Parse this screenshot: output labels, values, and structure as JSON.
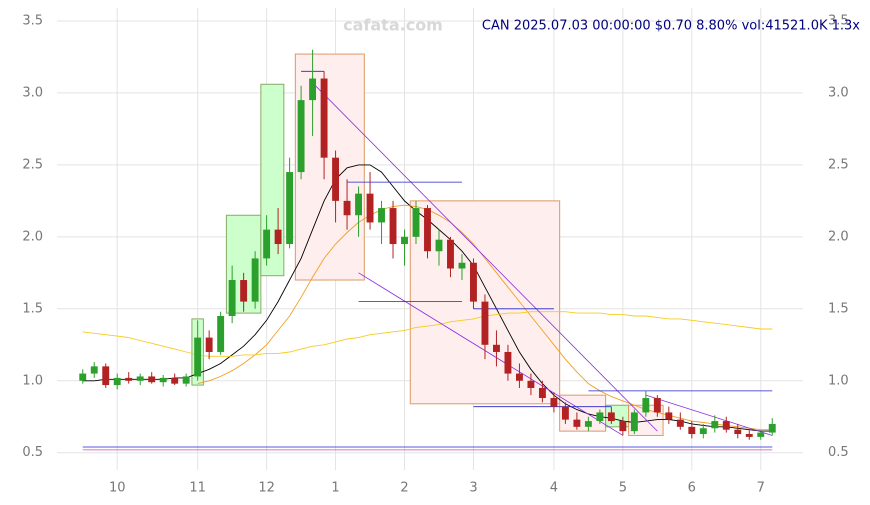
{
  "chart_data": {
    "type": "candlestick",
    "title": "CAN 2025.07.03 00:00:00 $0.70 8.80% vol:41521.0K 1.3x",
    "watermark": "cafata.com",
    "categories": [
      null,
      null,
      null,
      "10",
      null,
      null,
      null,
      null,
      null,
      null,
      "11",
      null,
      null,
      null,
      null,
      null,
      "12",
      null,
      null,
      null,
      null,
      null,
      "1",
      null,
      null,
      null,
      null,
      null,
      "2",
      null,
      null,
      null,
      null,
      null,
      "3",
      null,
      null,
      null,
      null,
      null,
      null,
      "4",
      null,
      null,
      null,
      null,
      null,
      "5",
      null,
      null,
      null,
      null,
      null,
      "6",
      null,
      null,
      null,
      null,
      null,
      "7",
      null
    ],
    "open": [
      1.0,
      1.05,
      1.1,
      0.97,
      1.02,
      1.0,
      1.03,
      0.99,
      1.02,
      0.98,
      1.03,
      1.3,
      1.2,
      1.45,
      1.7,
      1.55,
      1.85,
      2.05,
      1.95,
      2.45,
      2.95,
      3.1,
      2.55,
      2.25,
      2.15,
      2.3,
      2.1,
      2.2,
      1.95,
      2.0,
      2.2,
      1.9,
      1.98,
      1.78,
      1.82,
      1.55,
      1.25,
      1.2,
      1.05,
      1.0,
      0.95,
      0.88,
      0.82,
      0.73,
      0.68,
      0.72,
      0.78,
      0.72,
      0.65,
      0.78,
      0.88,
      0.78,
      0.73,
      0.68,
      0.63,
      0.67,
      0.72,
      0.66,
      0.63,
      0.61,
      0.64
    ],
    "high": [
      1.08,
      1.13,
      1.12,
      1.05,
      1.06,
      1.05,
      1.06,
      1.04,
      1.05,
      1.05,
      1.42,
      1.35,
      1.48,
      1.8,
      1.75,
      1.9,
      2.15,
      2.2,
      2.55,
      3.05,
      3.3,
      3.15,
      2.6,
      2.4,
      2.35,
      2.45,
      2.25,
      2.25,
      2.05,
      2.25,
      2.22,
      2.05,
      2.0,
      1.88,
      1.85,
      1.6,
      1.35,
      1.25,
      1.12,
      1.05,
      1.0,
      0.92,
      0.85,
      0.78,
      0.75,
      0.8,
      0.82,
      0.75,
      0.8,
      0.93,
      0.9,
      0.82,
      0.78,
      0.72,
      0.7,
      0.76,
      0.75,
      0.7,
      0.66,
      0.65,
      0.74
    ],
    "low": [
      0.98,
      1.02,
      0.95,
      0.94,
      0.98,
      0.97,
      0.98,
      0.96,
      0.97,
      0.96,
      1.0,
      1.15,
      1.18,
      1.4,
      1.48,
      1.5,
      1.8,
      1.88,
      1.92,
      2.4,
      2.7,
      2.4,
      2.1,
      2.05,
      2.0,
      2.05,
      1.95,
      1.85,
      1.8,
      1.95,
      1.85,
      1.8,
      1.72,
      1.7,
      1.5,
      1.15,
      1.1,
      1.0,
      0.95,
      0.9,
      0.85,
      0.78,
      0.7,
      0.66,
      0.65,
      0.7,
      0.7,
      0.62,
      0.63,
      0.75,
      0.75,
      0.7,
      0.66,
      0.6,
      0.6,
      0.64,
      0.64,
      0.6,
      0.59,
      0.59,
      0.62
    ],
    "close": [
      1.05,
      1.1,
      0.97,
      1.02,
      1.0,
      1.03,
      0.99,
      1.02,
      0.98,
      1.03,
      1.3,
      1.2,
      1.45,
      1.7,
      1.55,
      1.85,
      2.05,
      1.95,
      2.45,
      2.95,
      3.1,
      2.55,
      2.25,
      2.15,
      2.3,
      2.1,
      2.2,
      1.95,
      2.0,
      2.2,
      1.9,
      1.98,
      1.78,
      1.82,
      1.55,
      1.25,
      1.2,
      1.05,
      1.0,
      0.95,
      0.88,
      0.82,
      0.73,
      0.68,
      0.72,
      0.78,
      0.72,
      0.65,
      0.78,
      0.88,
      0.78,
      0.73,
      0.68,
      0.63,
      0.67,
      0.72,
      0.66,
      0.63,
      0.61,
      0.64,
      0.7
    ],
    "up_color": "#2ca02c",
    "down_color": "#b22222",
    "series": [
      {
        "color": "#000000",
        "values": [
          1.0,
          1.0,
          1.01,
          1.01,
          1.01,
          1.01,
          1.01,
          1.01,
          1.02,
          1.02,
          1.05,
          1.08,
          1.12,
          1.18,
          1.24,
          1.32,
          1.42,
          1.55,
          1.7,
          1.85,
          2.05,
          2.25,
          2.4,
          2.48,
          2.5,
          2.5,
          2.45,
          2.35,
          2.25,
          2.18,
          2.12,
          2.05,
          1.98,
          1.9,
          1.8,
          1.65,
          1.5,
          1.35,
          1.2,
          1.08,
          0.98,
          0.9,
          0.84,
          0.8,
          0.77,
          0.75,
          0.74,
          0.72,
          0.71,
          0.72,
          0.73,
          0.73,
          0.72,
          0.7,
          0.69,
          0.68,
          0.68,
          0.67,
          0.66,
          0.65,
          0.65
        ]
      },
      {
        "color": "#f0a020",
        "values": [
          null,
          null,
          null,
          null,
          null,
          null,
          null,
          null,
          null,
          null,
          0.98,
          1.0,
          1.03,
          1.07,
          1.12,
          1.18,
          1.25,
          1.35,
          1.45,
          1.58,
          1.72,
          1.85,
          1.95,
          2.03,
          2.1,
          2.15,
          2.19,
          2.21,
          2.22,
          2.21,
          2.19,
          2.15,
          2.1,
          2.03,
          1.95,
          1.85,
          1.75,
          1.65,
          1.55,
          1.45,
          1.35,
          1.25,
          1.15,
          1.06,
          0.98,
          0.93,
          0.89,
          0.86,
          0.83,
          0.8,
          0.78,
          0.76,
          0.74,
          0.72,
          0.71,
          0.7,
          0.69,
          0.68,
          0.67,
          0.66,
          0.66
        ]
      },
      {
        "color": "#f5cc20",
        "values": [
          1.34,
          1.33,
          1.32,
          1.31,
          1.3,
          1.28,
          1.26,
          1.24,
          1.22,
          1.2,
          1.18,
          1.17,
          1.17,
          1.17,
          1.18,
          1.18,
          1.19,
          1.19,
          1.2,
          1.22,
          1.24,
          1.25,
          1.27,
          1.29,
          1.3,
          1.32,
          1.33,
          1.34,
          1.35,
          1.37,
          1.38,
          1.39,
          1.41,
          1.42,
          1.43,
          1.45,
          1.46,
          1.47,
          1.47,
          1.48,
          1.48,
          1.48,
          1.48,
          1.47,
          1.47,
          1.47,
          1.46,
          1.46,
          1.45,
          1.45,
          1.44,
          1.43,
          1.43,
          1.42,
          1.41,
          1.4,
          1.39,
          1.38,
          1.37,
          1.36,
          1.36
        ]
      }
    ],
    "boxes": [
      {
        "start": 10,
        "end": 10,
        "low": 0.97,
        "high": 1.43,
        "color": "#ccffcc"
      },
      {
        "start": 13,
        "end": 15,
        "low": 1.47,
        "high": 2.15,
        "color": "#ccffcc"
      },
      {
        "start": 16,
        "end": 17,
        "low": 1.73,
        "high": 3.06,
        "color": "#ccffcc"
      },
      {
        "start": 19,
        "end": 24,
        "low": 1.7,
        "high": 3.27,
        "color": "#ffeeee"
      },
      {
        "start": 29,
        "end": 41,
        "low": 0.84,
        "high": 2.25,
        "color": "#ffeeee"
      },
      {
        "start": 42,
        "end": 45,
        "low": 0.65,
        "high": 0.9,
        "color": "#ffeeee"
      },
      {
        "start": 46,
        "end": 47,
        "low": 0.68,
        "high": 0.83,
        "color": "#ccffcc"
      },
      {
        "start": 48,
        "end": 50,
        "low": 0.62,
        "high": 0.83,
        "color": "#ffeeee"
      }
    ],
    "trend_lines": [
      {
        "x1": 20,
        "y1": 3.07,
        "x2": 50,
        "y2": 0.65,
        "color": "#8a2be2"
      },
      {
        "x1": 24,
        "y1": 1.75,
        "x2": 47,
        "y2": 0.62,
        "color": "#8a2be2"
      },
      {
        "x1": 49,
        "y1": 0.9,
        "x2": 60,
        "y2": 0.62,
        "color": "#8a2be2"
      }
    ],
    "hlines": [
      {
        "start": 19,
        "end": 21,
        "value": 3.15,
        "color": "#2222cc"
      },
      {
        "start": 23,
        "end": 33,
        "value": 2.38,
        "color": "#2222cc"
      },
      {
        "start": 24,
        "end": 33,
        "value": 1.55,
        "color": "#2222cc"
      },
      {
        "start": 34,
        "end": 41,
        "value": 1.5,
        "color": "#2222cc"
      },
      {
        "start": 34,
        "end": 46,
        "value": 0.82,
        "color": "#2222cc"
      },
      {
        "start": 44,
        "end": 60,
        "value": 0.93,
        "color": "#2222cc"
      },
      {
        "start": 0,
        "end": 60,
        "value": 0.54,
        "color": "#2222cc"
      },
      {
        "start": 0,
        "end": 60,
        "value": 0.52,
        "color": "#cc44cc"
      }
    ],
    "ylim": [
      0.38,
      3.59
    ],
    "yticks": [
      0.5,
      {
        "value": 1,
        "label": "1.0"
      },
      1.5,
      {
        "value": 2,
        "label": "2.0"
      },
      2.5,
      {
        "value": 3,
        "label": "3.0"
      },
      3.5
    ],
    "grid": true
  }
}
